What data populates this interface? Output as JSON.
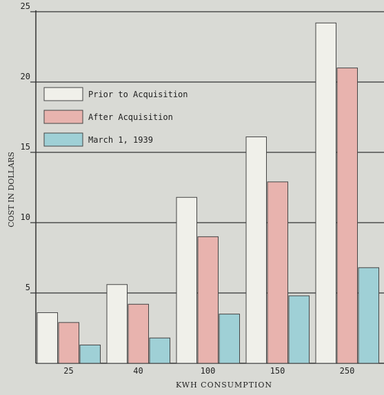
{
  "chart_data": {
    "type": "bar",
    "title": "",
    "xlabel": "KWH CONSUMPTION",
    "ylabel": "COST IN DOLLARS",
    "categories": [
      "25",
      "40",
      "100",
      "150",
      "250"
    ],
    "yticks": [
      "5",
      "10",
      "15",
      "20",
      "25"
    ],
    "ylim": [
      0,
      25
    ],
    "grid": true,
    "legend_position": "upper-left",
    "series": [
      {
        "name": "Prior to Acquisition",
        "values": [
          3.6,
          5.6,
          11.8,
          16.1,
          24.2
        ],
        "color": "#f0f0ea"
      },
      {
        "name": "After Acquisition",
        "values": [
          2.9,
          4.2,
          9.0,
          12.9,
          21.0
        ],
        "color": "#e8b3ae"
      },
      {
        "name": "March 1, 1939",
        "values": [
          1.3,
          1.8,
          3.5,
          4.8,
          6.8
        ],
        "color": "#9fd0d6"
      }
    ]
  }
}
